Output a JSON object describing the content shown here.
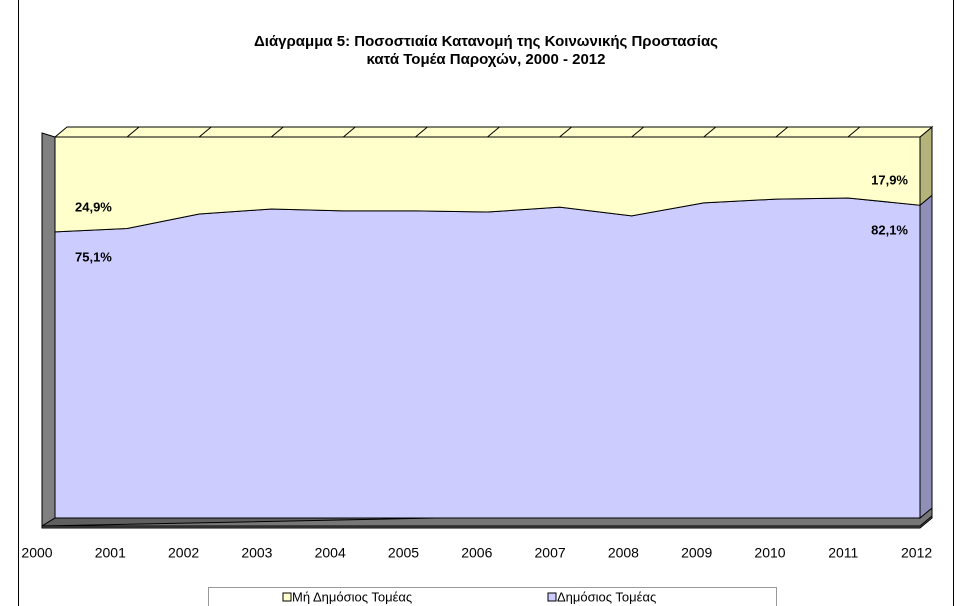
{
  "chart_data": {
    "type": "stacked_area_100",
    "title": [
      "Διάγραμμα 5: Ποσοστιαία Κατανομή της Κοινωνικής Προστασίας",
      "κατά Τομέα Παροχών, 2000 - 2012"
    ],
    "categories": [
      "2000",
      "2001",
      "2002",
      "2003",
      "2004",
      "2005",
      "2006",
      "2007",
      "2008",
      "2009",
      "2010",
      "2011",
      "2012"
    ],
    "series": [
      {
        "name": "Μή Δημόσιος Τομέας",
        "color": "#ffffcc",
        "side_color": "#b3b37a",
        "values": [
          24.9,
          24,
          20.2,
          18.9,
          19.4,
          19.4,
          19.7,
          18.4,
          20.7,
          17.3,
          16.3,
          16,
          17.9
        ],
        "value_labels": [
          "24,9%",
          null,
          null,
          null,
          null,
          null,
          null,
          null,
          null,
          null,
          null,
          null,
          "17,9%"
        ]
      },
      {
        "name": "Δημόσιος Τομέας",
        "color": "#ccccff",
        "side_color": "#8f8fb8",
        "values": [
          75.1,
          76,
          79.8,
          81.1,
          80.6,
          80.6,
          80.3,
          81.6,
          79.3,
          82.7,
          83.7,
          84,
          82.1
        ],
        "value_labels": [
          "75,1%",
          null,
          null,
          null,
          null,
          null,
          null,
          null,
          null,
          null,
          null,
          null,
          "82,1%"
        ]
      }
    ],
    "ylim": [
      0,
      100
    ],
    "legend": "bottom"
  }
}
